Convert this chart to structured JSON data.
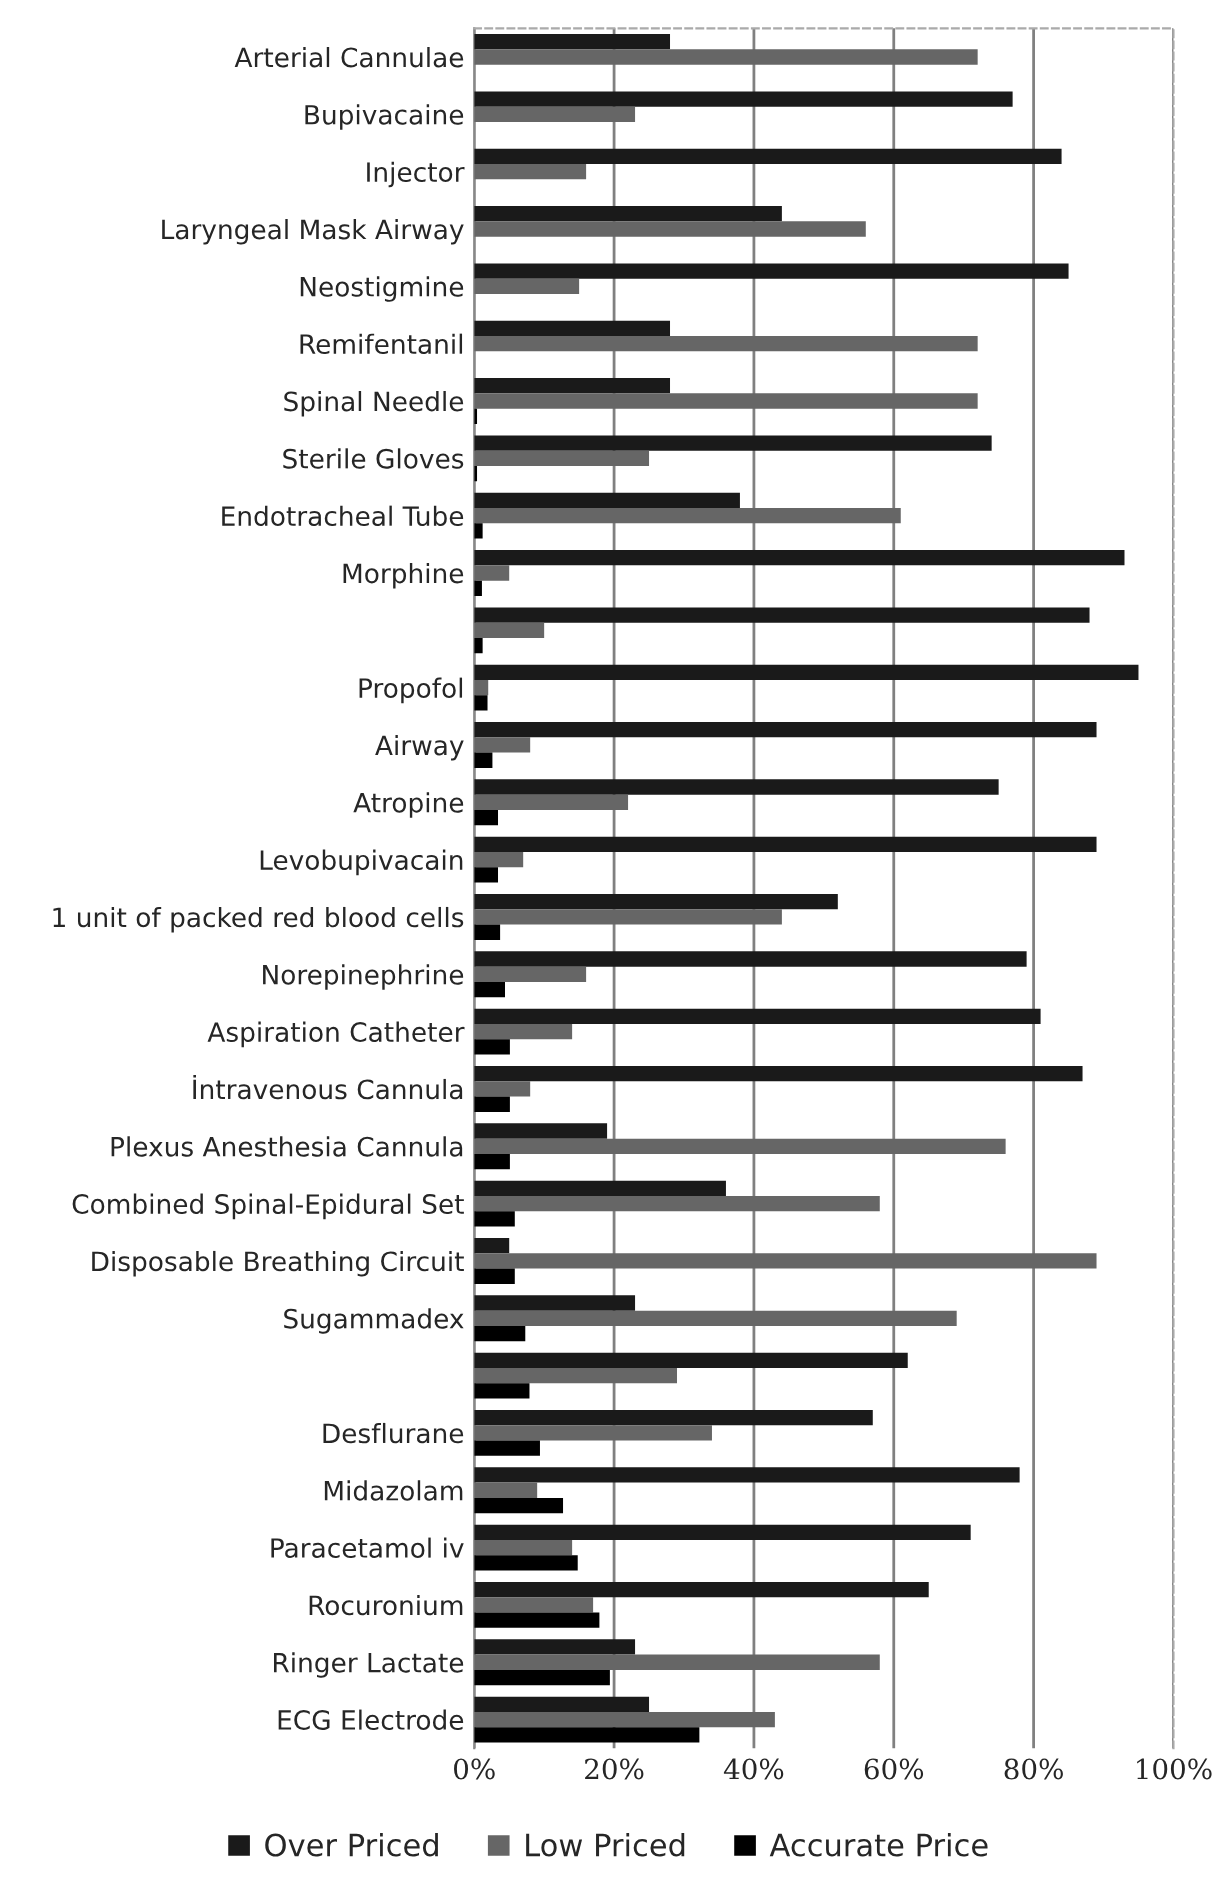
{
  "chart_data": {
    "type": "bar",
    "orientation": "horizontal",
    "categories": [
      "Arterial Cannulae",
      "Bupivacaine",
      "Injector",
      "Laryngeal Mask Airway",
      "Neostigmine",
      "Remifentanil",
      "Spinal Needle",
      "Sterile Gloves",
      "Endotracheal Tube",
      "Morphine",
      null,
      "Propofol",
      "Airway",
      "Atropine",
      "Levobupivacain",
      "1 unit of packed red blood cells",
      "Norepinephrine",
      "Aspiration Catheter",
      "İntravenous Cannula",
      "Plexus Anesthesia Cannula",
      "Combined Spinal-Epidural Set",
      "Disposable Breathing Circuit",
      "Sugammadex",
      null,
      "Desflurane",
      "Midazolam",
      "Paracetamol iv",
      "Rocuronium",
      "Ringer Lactate",
      "ECG Electrode"
    ],
    "series": [
      {
        "name": "Over Priced",
        "color": "#1a1a1a",
        "values": [
          28,
          77,
          84,
          44,
          85,
          28,
          28,
          74,
          38,
          93,
          88,
          95,
          89,
          75,
          89,
          52,
          79,
          81,
          87,
          19,
          36,
          5,
          23,
          62,
          57,
          78,
          71,
          65,
          23,
          25
        ]
      },
      {
        "name": "Low Priced",
        "color": "#666666",
        "values": [
          72,
          23,
          16,
          56,
          15,
          72,
          72,
          25,
          61,
          5,
          10,
          2,
          8,
          22,
          7,
          44,
          16,
          14,
          8,
          76,
          58,
          89,
          69,
          29,
          34,
          9,
          14,
          17,
          58,
          43
        ]
      },
      {
        "name": "Accurate Price",
        "color": "#000000",
        "values": [
          null,
          null,
          null,
          null,
          null,
          null,
          0.4,
          0.4,
          1.2,
          1.1,
          1.2,
          1.9,
          2.6,
          3.4,
          3.4,
          3.7,
          4.4,
          5.1,
          5.1,
          5.1,
          5.8,
          5.8,
          7.3,
          7.9,
          9.4,
          12.7,
          14.8,
          17.9,
          19.4,
          32.2
        ]
      }
    ],
    "xlim": [
      0,
      100
    ],
    "xticks": [
      {
        "value": 0,
        "label": "0%"
      },
      {
        "value": 20,
        "label": "20%"
      },
      {
        "value": 40,
        "label": "40%"
      },
      {
        "value": 60,
        "label": "60%"
      },
      {
        "value": 80,
        "label": "80%"
      },
      {
        "value": 100,
        "label": "100%"
      }
    ],
    "grid": "x",
    "legend": "bottom"
  }
}
